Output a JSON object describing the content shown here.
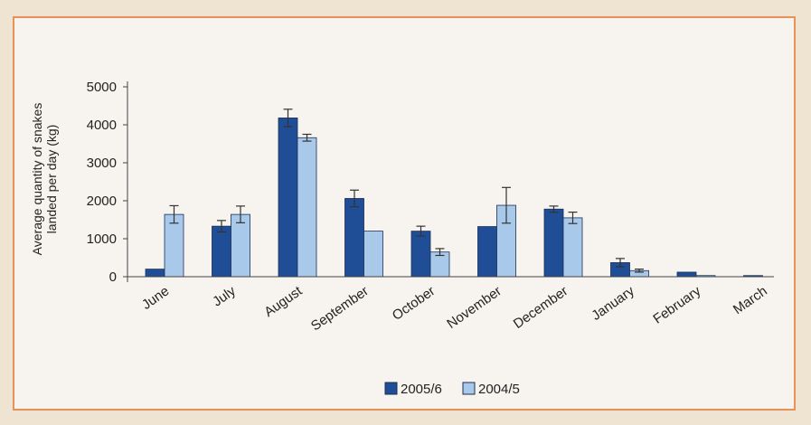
{
  "chart_data": {
    "type": "bar",
    "title": "",
    "xlabel": "",
    "ylabel_lines": [
      "Average quantity of snakes",
      "landed per day (kg)"
    ],
    "ylim": [
      0,
      5000
    ],
    "yticks": [
      0,
      1000,
      2000,
      3000,
      4000,
      5000
    ],
    "grid": false,
    "legend_position": "bottom-center",
    "categories": [
      "June",
      "July",
      "August",
      "September",
      "October",
      "November",
      "December",
      "January",
      "February",
      "March"
    ],
    "series": [
      {
        "name": "2005/6",
        "color": "#1f4e97",
        "values": [
          200,
          1330,
          4180,
          2060,
          1200,
          1320,
          1780,
          370,
          120,
          30
        ],
        "errors": [
          0,
          150,
          230,
          220,
          130,
          0,
          80,
          110,
          0,
          0
        ]
      },
      {
        "name": "2004/5",
        "color": "#a9c9ea",
        "values": [
          1640,
          1640,
          3660,
          1200,
          650,
          1880,
          1550,
          160,
          30,
          0
        ],
        "errors": [
          230,
          220,
          90,
          0,
          90,
          470,
          150,
          40,
          0,
          0
        ]
      }
    ]
  }
}
